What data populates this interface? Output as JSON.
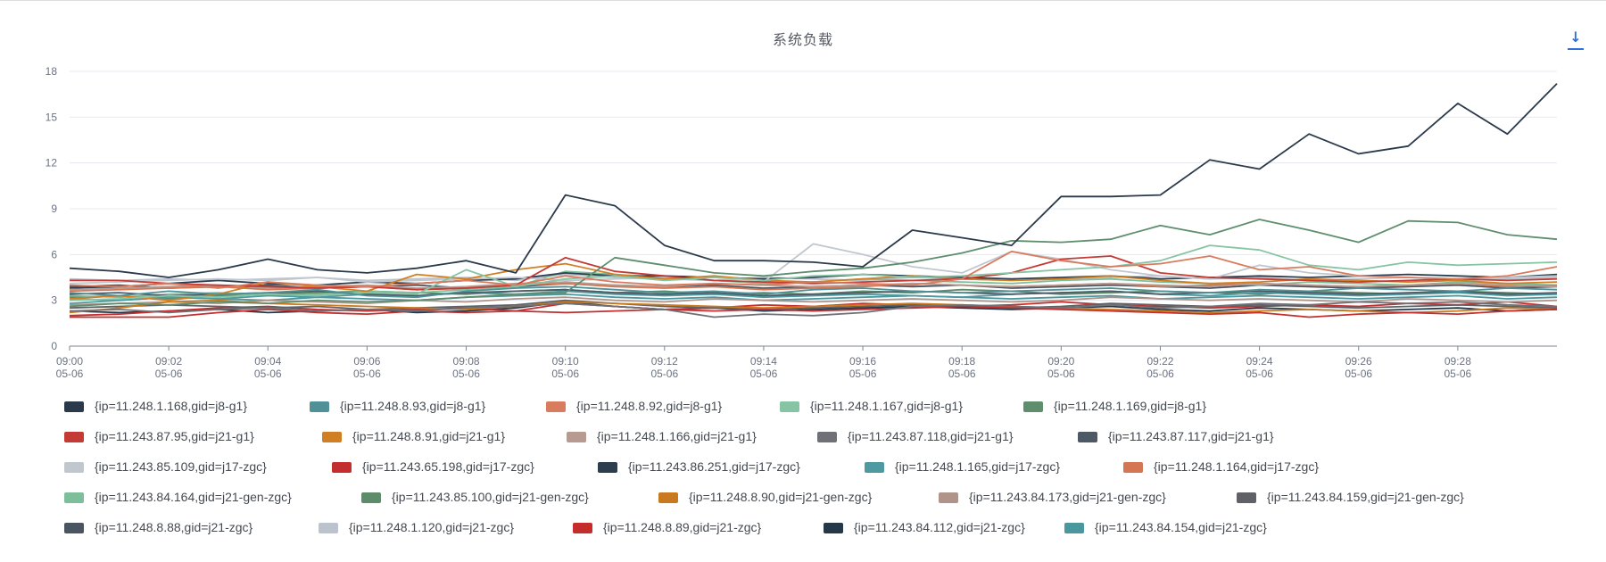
{
  "panel": {
    "title": "系统负载",
    "download_icon": "download-icon"
  },
  "chart_data": {
    "type": "line",
    "title": "系统负载",
    "xlabel": "",
    "ylabel": "",
    "ylim": [
      0,
      18
    ],
    "yticks": [
      0,
      3,
      6,
      9,
      12,
      15,
      18
    ],
    "grid": true,
    "legend_position": "bottom",
    "x": [
      "09:00",
      "09:01",
      "09:02",
      "09:03",
      "09:04",
      "09:05",
      "09:06",
      "09:07",
      "09:08",
      "09:09",
      "09:10",
      "09:11",
      "09:12",
      "09:13",
      "09:14",
      "09:15",
      "09:16",
      "09:17",
      "09:18",
      "09:19",
      "09:20",
      "09:21",
      "09:22",
      "09:23",
      "09:24",
      "09:25",
      "09:26",
      "09:27",
      "09:28",
      "09:29",
      "09:30"
    ],
    "xtick_labels": [
      {
        "time": "09:00",
        "date": "05-06"
      },
      {
        "time": "09:02",
        "date": "05-06"
      },
      {
        "time": "09:04",
        "date": "05-06"
      },
      {
        "time": "09:06",
        "date": "05-06"
      },
      {
        "time": "09:08",
        "date": "05-06"
      },
      {
        "time": "09:10",
        "date": "05-06"
      },
      {
        "time": "09:12",
        "date": "05-06"
      },
      {
        "time": "09:14",
        "date": "05-06"
      },
      {
        "time": "09:16",
        "date": "05-06"
      },
      {
        "time": "09:18",
        "date": "05-06"
      },
      {
        "time": "09:20",
        "date": "05-06"
      },
      {
        "time": "09:22",
        "date": "05-06"
      },
      {
        "time": "09:24",
        "date": "05-06"
      },
      {
        "time": "09:26",
        "date": "05-06"
      },
      {
        "time": "09:28",
        "date": "05-06"
      }
    ],
    "series": [
      {
        "name": "{ip=11.248.1.168,gid=j8-g1}",
        "color": "#2b3a4a",
        "values": [
          5.1,
          4.9,
          4.5,
          5.0,
          5.7,
          5.0,
          4.8,
          5.1,
          5.6,
          4.8,
          9.9,
          9.2,
          6.6,
          5.6,
          5.6,
          5.5,
          5.2,
          7.6,
          7.1,
          6.6,
          9.8,
          9.8,
          9.9,
          12.2,
          11.6,
          13.9,
          12.6,
          13.1,
          15.9,
          13.9,
          17.2
        ]
      },
      {
        "name": "{ip=11.248.8.93,gid=j8-g1}",
        "color": "#4f9197",
        "values": [
          3.5,
          3.3,
          3.6,
          3.4,
          3.5,
          3.7,
          3.3,
          3.2,
          3.6,
          3.8,
          3.9,
          3.7,
          3.5,
          3.6,
          3.4,
          3.7,
          3.8,
          3.6,
          3.5,
          3.6,
          3.7,
          3.8,
          3.6,
          3.5,
          3.7,
          3.6,
          3.8,
          3.7,
          3.6,
          3.8,
          3.7
        ]
      },
      {
        "name": "{ip=11.248.8.92,gid=j8-g1}",
        "color": "#d97b5e",
        "values": [
          4.0,
          3.9,
          4.1,
          3.8,
          4.2,
          4.0,
          3.9,
          4.1,
          4.3,
          4.0,
          4.6,
          4.2,
          4.0,
          4.1,
          4.0,
          4.2,
          4.1,
          4.0,
          4.4,
          6.2,
          5.6,
          5.2,
          5.4,
          5.9,
          5.0,
          5.2,
          4.6,
          4.5,
          4.4,
          4.6,
          5.2
        ]
      },
      {
        "name": "{ip=11.248.1.167,gid=j8-g1}",
        "color": "#86c4a4",
        "values": [
          3.0,
          3.1,
          3.3,
          3.2,
          3.4,
          3.3,
          3.5,
          3.4,
          5.0,
          3.9,
          4.4,
          4.6,
          4.3,
          4.5,
          4.3,
          4.6,
          4.7,
          4.5,
          4.6,
          4.8,
          5.0,
          5.2,
          5.6,
          6.6,
          6.3,
          5.3,
          5.0,
          5.5,
          5.3,
          5.4,
          5.5
        ]
      },
      {
        "name": "{ip=11.248.1.169,gid=j8-g1}",
        "color": "#5f8e6e",
        "values": [
          2.6,
          2.8,
          2.7,
          2.9,
          2.8,
          3.0,
          2.9,
          3.0,
          3.2,
          3.4,
          3.5,
          5.8,
          5.3,
          4.8,
          4.6,
          4.9,
          5.1,
          5.5,
          6.1,
          6.9,
          6.8,
          7.0,
          7.9,
          7.3,
          8.3,
          7.6,
          6.8,
          8.2,
          8.1,
          7.3,
          7.0
        ]
      },
      {
        "name": "{ip=11.243.87.95,gid=j21-g1}",
        "color": "#c43a34",
        "values": [
          4.3,
          4.3,
          4.1,
          4.0,
          3.9,
          3.8,
          3.9,
          3.7,
          3.8,
          4.0,
          5.8,
          4.9,
          4.6,
          4.3,
          4.2,
          4.1,
          4.2,
          4.3,
          4.4,
          4.8,
          5.7,
          5.9,
          4.8,
          4.5,
          4.4,
          4.3,
          4.2,
          4.3,
          4.4,
          4.3,
          4.4
        ]
      },
      {
        "name": "{ip=11.248.8.91,gid=j21-g1}",
        "color": "#d17f24",
        "values": [
          3.1,
          3.3,
          3.0,
          3.4,
          4.2,
          3.9,
          3.6,
          4.7,
          4.4,
          5.0,
          5.4,
          4.7,
          4.4,
          4.6,
          4.3,
          4.2,
          4.4,
          4.6,
          4.4,
          4.3,
          4.4,
          4.6,
          4.3,
          4.1,
          4.2,
          4.4,
          4.3,
          4.2,
          4.3,
          4.1,
          4.2
        ]
      },
      {
        "name": "{ip=11.248.1.166,gid=j21-g1}",
        "color": "#b89a90",
        "values": [
          3.7,
          3.8,
          3.9,
          4.0,
          3.8,
          3.9,
          4.0,
          3.8,
          3.9,
          4.1,
          4.2,
          4.0,
          3.9,
          4.1,
          4.0,
          3.9,
          4.0,
          4.1,
          4.0,
          3.9,
          4.0,
          4.1,
          4.0,
          3.9,
          4.1,
          4.0,
          3.9,
          4.0,
          4.1,
          4.0,
          3.9
        ]
      },
      {
        "name": "{ip=11.243.87.118,gid=j21-g1}",
        "color": "#6f7176",
        "values": [
          2.3,
          2.4,
          2.2,
          2.4,
          2.5,
          2.3,
          2.4,
          2.3,
          2.5,
          2.6,
          2.8,
          2.6,
          2.4,
          1.9,
          2.1,
          2.0,
          2.2,
          2.6,
          2.7,
          2.6,
          2.5,
          2.7,
          2.5,
          2.6,
          2.8,
          2.7,
          2.9,
          2.8,
          2.9,
          2.7,
          2.6
        ]
      },
      {
        "name": "{ip=11.243.87.117,gid=j21-g1}",
        "color": "#4e5966",
        "values": [
          3.4,
          3.5,
          3.3,
          3.4,
          3.5,
          3.6,
          3.4,
          3.3,
          3.5,
          3.6,
          3.7,
          3.5,
          3.4,
          3.5,
          3.3,
          3.4,
          3.5,
          3.6,
          3.5,
          3.4,
          3.5,
          3.6,
          3.4,
          3.5,
          3.6,
          3.5,
          3.4,
          3.5,
          3.6,
          3.4,
          3.5
        ]
      },
      {
        "name": "{ip=11.243.85.109,gid=j17-zgc}",
        "color": "#c1c7cf",
        "values": [
          4.1,
          4.2,
          4.3,
          4.4,
          4.3,
          4.5,
          4.2,
          4.3,
          4.4,
          4.5,
          4.3,
          4.4,
          4.5,
          4.3,
          4.2,
          6.7,
          6.0,
          5.2,
          4.8,
          6.2,
          5.7,
          5.0,
          4.6,
          4.4,
          5.3,
          4.8,
          4.6,
          4.5,
          4.4,
          4.5,
          4.6
        ]
      },
      {
        "name": "{ip=11.243.65.198,gid=j17-zgc}",
        "color": "#c22f2f",
        "values": [
          1.9,
          1.9,
          1.9,
          2.2,
          2.4,
          2.2,
          2.1,
          2.3,
          2.2,
          2.3,
          2.2,
          2.3,
          2.4,
          2.3,
          2.4,
          2.3,
          2.4,
          2.5,
          2.6,
          2.5,
          2.4,
          2.3,
          2.2,
          2.1,
          2.2,
          1.9,
          2.1,
          2.2,
          2.1,
          2.3,
          2.4
        ]
      },
      {
        "name": "{ip=11.243.86.251,gid=j17-zgc}",
        "color": "#2c3d4f",
        "values": [
          3.8,
          3.9,
          4.1,
          4.3,
          4.1,
          4.0,
          4.2,
          4.1,
          4.3,
          4.4,
          4.8,
          4.6,
          4.6,
          4.5,
          4.4,
          4.5,
          4.7,
          4.6,
          4.5,
          4.4,
          4.5,
          4.6,
          4.4,
          4.5,
          4.6,
          4.5,
          4.6,
          4.7,
          4.6,
          4.5,
          4.7
        ]
      },
      {
        "name": "{ip=11.248.1.165,gid=j17-zgc}",
        "color": "#4e9aa0",
        "values": [
          2.8,
          3.0,
          3.2,
          3.1,
          3.3,
          3.2,
          3.4,
          3.3,
          3.5,
          3.4,
          3.6,
          3.4,
          3.3,
          3.4,
          3.2,
          3.3,
          3.4,
          3.3,
          3.2,
          3.4,
          3.5,
          3.6,
          3.4,
          3.3,
          3.5,
          3.4,
          3.3,
          3.4,
          3.5,
          3.3,
          3.4
        ]
      },
      {
        "name": "{ip=11.248.1.164,gid=j17-zgc}",
        "color": "#d47654",
        "values": [
          3.6,
          3.7,
          3.8,
          3.9,
          3.7,
          3.8,
          3.9,
          3.7,
          3.8,
          4.0,
          4.1,
          3.9,
          3.8,
          3.9,
          3.7,
          3.8,
          3.9,
          4.1,
          4.0,
          3.9,
          4.0,
          4.1,
          3.9,
          4.0,
          4.1,
          4.0,
          3.9,
          4.0,
          4.1,
          3.9,
          4.0
        ]
      },
      {
        "name": "{ip=11.243.84.164,gid=j21-gen-zgc}",
        "color": "#7cbf9a",
        "values": [
          3.3,
          3.2,
          3.4,
          3.5,
          3.3,
          3.4,
          3.6,
          3.5,
          3.7,
          3.9,
          4.9,
          4.7,
          4.5,
          4.3,
          4.1,
          4.2,
          4.4,
          4.3,
          4.2,
          4.1,
          4.3,
          4.4,
          4.2,
          4.1,
          4.0,
          4.2,
          4.1,
          4.0,
          4.2,
          4.1,
          4.0
        ]
      },
      {
        "name": "{ip=11.243.85.100,gid=j21-gen-zgc}",
        "color": "#5c8c6a",
        "values": [
          3.2,
          3.3,
          3.1,
          3.3,
          3.4,
          3.5,
          3.6,
          3.5,
          3.4,
          3.6,
          3.7,
          3.5,
          3.6,
          3.4,
          3.5,
          3.4,
          3.6,
          3.5,
          3.7,
          3.6,
          3.4,
          3.5,
          3.6,
          3.5,
          3.4,
          3.6,
          3.5,
          3.4,
          3.6,
          3.5,
          3.4
        ]
      },
      {
        "name": "{ip=11.248.8.90,gid=j21-gen-zgc}",
        "color": "#c97a1f",
        "values": [
          2.2,
          2.5,
          2.9,
          3.0,
          2.8,
          2.7,
          2.6,
          2.5,
          2.4,
          2.6,
          2.9,
          2.8,
          2.7,
          2.6,
          2.5,
          2.6,
          2.7,
          2.8,
          2.7,
          2.6,
          2.5,
          2.4,
          2.3,
          2.2,
          2.3,
          2.4,
          2.3,
          2.2,
          2.3,
          2.5,
          2.4
        ]
      },
      {
        "name": "{ip=11.243.84.173,gid=j21-gen-zgc}",
        "color": "#b0948a",
        "values": [
          2.7,
          2.8,
          2.9,
          2.8,
          3.0,
          2.9,
          2.8,
          3.0,
          2.9,
          3.1,
          3.2,
          3.0,
          2.9,
          3.1,
          3.0,
          2.9,
          3.0,
          3.1,
          3.0,
          2.9,
          3.0,
          3.2,
          3.1,
          3.0,
          3.1,
          3.0,
          2.9,
          3.1,
          3.0,
          2.9,
          3.0
        ]
      },
      {
        "name": "{ip=11.243.84.159,gid=j21-gen-zgc}",
        "color": "#5f6166",
        "values": [
          2.5,
          2.6,
          2.7,
          2.6,
          2.5,
          2.6,
          2.4,
          2.5,
          2.6,
          2.7,
          3.0,
          2.8,
          2.6,
          2.5,
          2.4,
          2.5,
          2.6,
          2.7,
          2.6,
          2.5,
          2.6,
          2.8,
          2.7,
          2.6,
          2.7,
          2.6,
          2.5,
          2.6,
          2.7,
          2.6,
          2.5
        ]
      },
      {
        "name": "{ip=11.248.8.88,gid=j21-zgc}",
        "color": "#4a5561",
        "values": [
          3.9,
          4.0,
          3.8,
          3.9,
          4.0,
          3.8,
          3.9,
          4.0,
          3.8,
          3.9,
          4.1,
          4.0,
          3.9,
          4.0,
          3.8,
          3.9,
          4.0,
          3.9,
          4.0,
          3.8,
          3.9,
          4.0,
          3.9,
          3.8,
          4.0,
          3.9,
          3.8,
          3.9,
          4.0,
          3.8,
          3.9
        ]
      },
      {
        "name": "{ip=11.248.1.120,gid=j21-zgc}",
        "color": "#bcc3cc",
        "values": [
          4.4,
          4.3,
          4.4,
          4.3,
          4.4,
          4.5,
          4.3,
          4.4,
          4.5,
          4.3,
          4.7,
          4.5,
          4.4,
          4.3,
          4.5,
          4.4,
          4.3,
          4.5,
          4.4,
          4.3,
          4.4,
          4.5,
          4.6,
          4.4,
          4.5,
          4.3,
          4.4,
          4.5,
          4.3,
          4.4,
          4.5
        ]
      },
      {
        "name": "{ip=11.248.8.89,gid=j21-zgc}",
        "color": "#c52d2d",
        "values": [
          2.0,
          2.1,
          2.3,
          2.5,
          2.6,
          2.4,
          2.3,
          2.4,
          2.5,
          2.3,
          2.8,
          2.6,
          2.4,
          2.5,
          2.7,
          2.6,
          2.8,
          2.7,
          2.6,
          2.7,
          2.9,
          2.7,
          2.6,
          2.5,
          2.6,
          2.7,
          2.6,
          2.8,
          2.7,
          2.9,
          2.6
        ]
      },
      {
        "name": "{ip=11.243.84.112,gid=j21-zgc}",
        "color": "#24384a",
        "values": [
          2.3,
          2.2,
          2.3,
          2.4,
          2.2,
          2.3,
          2.4,
          2.2,
          2.3,
          2.5,
          2.9,
          2.6,
          2.4,
          2.5,
          2.3,
          2.4,
          2.5,
          2.6,
          2.5,
          2.4,
          2.5,
          2.6,
          2.4,
          2.3,
          2.5,
          2.4,
          2.3,
          2.4,
          2.5,
          2.3,
          2.4
        ]
      },
      {
        "name": "{ip=11.243.84.154,gid=j21-zgc}",
        "color": "#4b979e",
        "values": [
          3.1,
          3.0,
          3.2,
          3.1,
          3.0,
          3.2,
          3.1,
          3.0,
          3.2,
          3.3,
          3.4,
          3.2,
          3.1,
          3.2,
          3.0,
          3.1,
          3.2,
          3.3,
          3.2,
          3.1,
          3.2,
          3.3,
          3.1,
          3.2,
          3.3,
          3.2,
          3.1,
          3.2,
          3.3,
          3.1,
          3.2
        ]
      }
    ]
  }
}
